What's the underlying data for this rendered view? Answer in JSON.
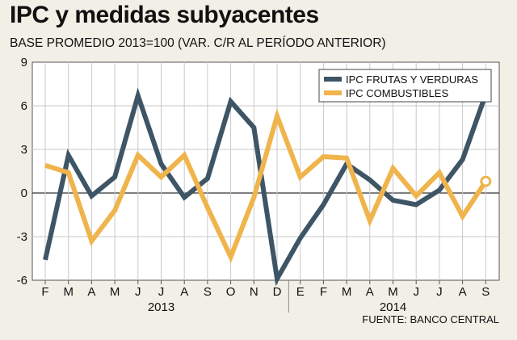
{
  "title": "IPC y medidas subyacentes",
  "subtitle": "BASE PROMEDIO 2013=100 (VAR. C/R AL PERÍODO ANTERIOR)",
  "source": "FUENTE: BANCO CENTRAL",
  "colors": {
    "background": "#f2efe6",
    "frutas": "#3e5566",
    "combustibles": "#f0b44c"
  },
  "chart_data": {
    "type": "line",
    "title": "IPC y medidas subyacentes",
    "subtitle": "BASE PROMEDIO 2013=100 (VAR. C/R AL PERÍODO ANTERIOR)",
    "xlabel": "",
    "ylabel": "",
    "categories": [
      "F",
      "M",
      "A",
      "M",
      "J",
      "J",
      "A",
      "S",
      "O",
      "N",
      "D",
      "E",
      "F",
      "M",
      "A",
      "M",
      "J",
      "J",
      "A",
      "S"
    ],
    "year_labels": [
      {
        "label": "2013",
        "from": 0,
        "to": 10
      },
      {
        "label": "2014",
        "from": 11,
        "to": 19
      }
    ],
    "ylim": [
      -6,
      9
    ],
    "yticks": [
      -6,
      -3,
      0,
      3,
      6,
      9
    ],
    "grid": true,
    "legend_position": "top-right",
    "series": [
      {
        "name": "IPC FRUTAS Y VERDURAS",
        "color": "#3e5566",
        "values": [
          -4.6,
          2.6,
          -0.2,
          1.1,
          6.7,
          2.0,
          -0.3,
          1.0,
          6.3,
          4.5,
          -5.9,
          -3.1,
          -0.8,
          2.0,
          0.9,
          -0.5,
          -0.8,
          0.2,
          2.3,
          6.8
        ]
      },
      {
        "name": "IPC COMBUSTIBLES",
        "color": "#f0b44c",
        "values": [
          1.9,
          1.4,
          -3.3,
          -1.2,
          2.6,
          1.1,
          2.6,
          -1.0,
          -4.4,
          -0.3,
          5.3,
          1.1,
          2.5,
          2.4,
          -1.9,
          1.7,
          -0.2,
          1.4,
          -1.6,
          0.8
        ]
      }
    ]
  }
}
